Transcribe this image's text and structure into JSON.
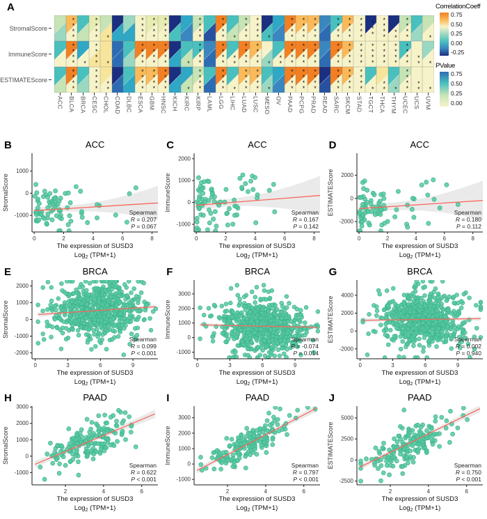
{
  "chart_data": {
    "heatmap": {
      "type": "heatmap",
      "letter": "A",
      "note": "Each cell: upper-left triangle = correlation coefficient, lower-right triangle = P value, asterisks = significance",
      "rows": [
        "StromalScore",
        "ImmuneScore",
        "ESTIMATEScore"
      ],
      "columns": [
        "ACC",
        "BLCA",
        "BRCA",
        "CESC",
        "CHOL",
        "COAD",
        "DLBC",
        "ESCA",
        "GBM",
        "HNSC",
        "KICH",
        "KIRC",
        "KIRP",
        "LAML",
        "LGG",
        "LIHC",
        "LUAD",
        "LUSC",
        "MESO",
        "OV",
        "PAAD",
        "PCPG",
        "PRAD",
        "READ",
        "SARC",
        "SKCM",
        "STAD",
        "TGCT",
        "THCA",
        "THYM",
        "UCEC",
        "UCS",
        "UVM"
      ],
      "palette": {
        "o": "#F28023",
        "lo": "#FBBA5A",
        "ly": "#F7E59C",
        "y": "#F7F3C9",
        "yg": "#E7ECB2",
        "g": "#C6E4B5",
        "pt": "#9BD8C2",
        "t": "#49C0BE",
        "tb": "#2FA8C6",
        "sb": "#3A87C0",
        "b": "#2D6CB2",
        "nb": "#27519F",
        "dn": "#1B2F80"
      },
      "cells": [
        [
          [
            "g",
            "pt",
            0
          ],
          [
            "lo",
            "y",
            4
          ],
          [
            "t",
            "g",
            0
          ],
          [
            "yg",
            "y",
            4
          ],
          [
            "g",
            "ly",
            1
          ],
          [
            "dn",
            "tb",
            0
          ],
          [
            "pt",
            "tb",
            0
          ],
          [
            "y",
            "y",
            4
          ],
          [
            "yg",
            "y",
            4
          ],
          [
            "yg",
            "y",
            4
          ],
          [
            "dn",
            "t",
            0
          ],
          [
            "tb",
            "sb",
            0
          ],
          [
            "g",
            "y",
            4
          ],
          [
            "t",
            "nb",
            0
          ],
          [
            "o",
            "y",
            4
          ],
          [
            "t",
            "g",
            1
          ],
          [
            "g",
            "y",
            4
          ],
          [
            "y",
            "y",
            4
          ],
          [
            "dn",
            "t",
            1
          ],
          [
            "tb",
            "sb",
            0
          ],
          [
            "o",
            "y",
            4
          ],
          [
            "lo",
            "y",
            4
          ],
          [
            "lo",
            "y",
            4
          ],
          [
            "sb",
            "b",
            0
          ],
          [
            "t",
            "y",
            4
          ],
          [
            "lo",
            "y",
            4
          ],
          [
            "y",
            "y",
            4
          ],
          [
            "dn",
            "y",
            3
          ],
          [
            "y",
            "y",
            4
          ],
          [
            "dn",
            "y",
            2
          ],
          [
            "g",
            "y",
            4
          ],
          [
            "t",
            "pt",
            0
          ],
          [
            "g",
            "y",
            1
          ]
        ],
        [
          [
            "t",
            "y",
            0
          ],
          [
            "o",
            "y",
            4
          ],
          [
            "tb",
            "y",
            1
          ],
          [
            "y",
            "ly",
            4
          ],
          [
            "ly",
            "ly",
            1
          ],
          [
            "b",
            "b",
            0
          ],
          [
            "t",
            "pt",
            0
          ],
          [
            "o",
            "y",
            4
          ],
          [
            "o",
            "y",
            4
          ],
          [
            "o",
            "y",
            4
          ],
          [
            "dn",
            "tb",
            0
          ],
          [
            "t",
            "g",
            1
          ],
          [
            "t",
            "y",
            4
          ],
          [
            "sb",
            "b",
            0
          ],
          [
            "o",
            "y",
            4
          ],
          [
            "t",
            "y",
            2
          ],
          [
            "o",
            "y",
            4
          ],
          [
            "lo",
            "y",
            4
          ],
          [
            "y",
            "pt",
            1
          ],
          [
            "t",
            "y",
            2
          ],
          [
            "o",
            "y",
            4
          ],
          [
            "o",
            "y",
            4
          ],
          [
            "o",
            "y",
            4
          ],
          [
            "sb",
            "b",
            0
          ],
          [
            "o",
            "y",
            4
          ],
          [
            "lo",
            "y",
            4
          ],
          [
            "y",
            "y",
            4
          ],
          [
            "y",
            "y",
            4
          ],
          [
            "y",
            "y",
            4
          ],
          [
            "y",
            "y",
            4
          ],
          [
            "t",
            "y",
            4
          ],
          [
            "y",
            "y",
            2
          ],
          [
            "pt",
            "y",
            1
          ]
        ],
        [
          [
            "t",
            "g",
            0
          ],
          [
            "o",
            "y",
            4
          ],
          [
            "t",
            "pt",
            0
          ],
          [
            "y",
            "y",
            4
          ],
          [
            "ly",
            "y",
            2
          ],
          [
            "dn",
            "b",
            0
          ],
          [
            "t",
            "tb",
            0
          ],
          [
            "lo",
            "y",
            4
          ],
          [
            "lo",
            "y",
            4
          ],
          [
            "o",
            "y",
            4
          ],
          [
            "dn",
            "tb",
            0
          ],
          [
            "tb",
            "g",
            1
          ],
          [
            "g",
            "y",
            4
          ],
          [
            "t",
            "b",
            0
          ],
          [
            "o",
            "y",
            4
          ],
          [
            "t",
            "y",
            1
          ],
          [
            "lo",
            "y",
            4
          ],
          [
            "lo",
            "y",
            4
          ],
          [
            "t",
            "pt",
            1
          ],
          [
            "tb",
            "sb",
            0
          ],
          [
            "o",
            "y",
            4
          ],
          [
            "o",
            "y",
            4
          ],
          [
            "o",
            "y",
            4
          ],
          [
            "dn",
            "nb",
            0
          ],
          [
            "o",
            "y",
            4
          ],
          [
            "lo",
            "y",
            4
          ],
          [
            "y",
            "y",
            4
          ],
          [
            "t",
            "y",
            1
          ],
          [
            "ly",
            "y",
            2
          ],
          [
            "t",
            "pt",
            1
          ],
          [
            "g",
            "y",
            4
          ],
          [
            "y",
            "y",
            2
          ],
          [
            "y",
            "y",
            1
          ]
        ]
      ],
      "legend_correlation": {
        "title": "CorrelationCoeff",
        "ticks": [
          "0.75",
          "0.50",
          "0.25",
          "0.00",
          "-0.25"
        ],
        "gradient": [
          "#F28023",
          "#FBBA5A",
          "#F7F3C9",
          "#9BD8C2",
          "#49C0BE",
          "#3A87C0",
          "#1B2F80"
        ]
      },
      "legend_pvalue": {
        "title": "PValue",
        "ticks": [
          "0.75",
          "0.50",
          "0.25",
          "0.00"
        ],
        "gradient": [
          "#2D6CB2",
          "#49C0BE",
          "#C6E4B5",
          "#F7F3C9"
        ]
      }
    },
    "scatter_common": {
      "xlabel_line1": "The expression of SUSD3",
      "xlabel_line2_prefix": "Log",
      "xlabel_subscript": "2",
      "xlabel_line2_suffix": " (TPM+1)",
      "spearman_label": "Spearman",
      "point_color": "#55C8A0",
      "point_stroke": "#3EB28C",
      "line_color": "#F8685C",
      "band_color": "#D9D9D9"
    },
    "scatter_panels": [
      {
        "letter": "B",
        "title": "ACC",
        "ylabel": "StromalScore",
        "r": "R = 0.207",
        "p": "P = 0.067",
        "xticks": [
          0,
          2,
          4,
          6,
          8
        ],
        "yticks": [
          -1000,
          0,
          1000
        ],
        "xlim": [
          -0.15,
          8.4
        ],
        "ylim": [
          -1750,
          1800
        ],
        "n": 79,
        "seed": 11,
        "xdist": {
          "type": "exp",
          "mean": 1.7,
          "min": 0.05,
          "max": 8.2
        },
        "line": {
          "x1": 0,
          "y1": -790,
          "x2": 8.4,
          "y2": -440
        },
        "sd": 530,
        "band": {
          "h0": 130,
          "c": 8,
          "xm": 1.7
        },
        "pt_r": 3.1
      },
      {
        "letter": "C",
        "title": "ACC",
        "ylabel": "ImmuneScore",
        "r": "R = 0.167",
        "p": "P = 0.142",
        "xticks": [
          0,
          2,
          4,
          6,
          8
        ],
        "yticks": [
          -1000,
          0,
          1000,
          2000
        ],
        "xlim": [
          -0.15,
          8.4
        ],
        "ylim": [
          -1350,
          2250
        ],
        "n": 79,
        "seed": 23,
        "xdist": {
          "type": "exp",
          "mean": 1.7,
          "min": 0.05,
          "max": 8.2
        },
        "line": {
          "x1": 0,
          "y1": -130,
          "x2": 8.4,
          "y2": 320
        },
        "sd": 720,
        "band": {
          "h0": 170,
          "c": 7,
          "xm": 1.7
        },
        "pt_r": 3.1
      },
      {
        "letter": "D",
        "title": "ACC",
        "ylabel": "ESTIMATEScore",
        "r": "R = 0.180",
        "p": "P = 0.112",
        "xticks": [
          0,
          2,
          4,
          6,
          8
        ],
        "yticks": [
          -2000,
          0,
          2000
        ],
        "xlim": [
          -0.15,
          8.7
        ],
        "ylim": [
          -2900,
          3900
        ],
        "n": 79,
        "seed": 35,
        "xdist": {
          "type": "exp",
          "mean": 1.75,
          "min": 0.05,
          "max": 8.0
        },
        "line": {
          "x1": 0,
          "y1": -880,
          "x2": 8.7,
          "y2": -180
        },
        "sd": 1250,
        "band": {
          "h0": 320,
          "c": 7,
          "xm": 1.7
        },
        "pt_r": 3.1
      },
      {
        "letter": "E",
        "title": "BRCA",
        "ylabel": "StromalScore",
        "r": "R = 0.099",
        "p": "P < 0.001",
        "xticks": [
          0,
          3,
          6,
          9
        ],
        "yticks": [
          -2000,
          -1000,
          0,
          1000,
          2000
        ],
        "xlim": [
          -0.3,
          11.3
        ],
        "ylim": [
          -2350,
          2350
        ],
        "n": 640,
        "seed": 47,
        "xdist": {
          "type": "norm",
          "mean": 5.9,
          "sd": 2.1,
          "min": 0.25,
          "max": 11.1
        },
        "line": {
          "x1": 0.25,
          "y1": 290,
          "x2": 11.1,
          "y2": 760
        },
        "sd": 880,
        "band": {
          "h0": 80,
          "c": 3,
          "xm": 5.9
        },
        "pt_r": 2.9
      },
      {
        "letter": "F",
        "title": "BRCA",
        "ylabel": "ImmuneScore",
        "r": "R = -0.074",
        "p": "P = 0.014",
        "xticks": [
          0,
          3,
          6,
          9
        ],
        "yticks": [
          -1000,
          0,
          1000,
          2000,
          3000
        ],
        "xlim": [
          -0.3,
          11.3
        ],
        "ylim": [
          -1450,
          3950
        ],
        "n": 640,
        "seed": 59,
        "xdist": {
          "type": "norm",
          "mean": 5.9,
          "sd": 2.1,
          "min": 0.25,
          "max": 11.1
        },
        "line": {
          "x1": 0.25,
          "y1": 880,
          "x2": 11.1,
          "y2": 700
        },
        "sd": 950,
        "band": {
          "h0": 85,
          "c": 3,
          "xm": 5.9
        },
        "pt_r": 2.9
      },
      {
        "letter": "G",
        "title": "BRCA",
        "ylabel": "ESTIMATEScore",
        "r": "R = 0.002",
        "p": "P = 0.940",
        "xticks": [
          0,
          3,
          6,
          9
        ],
        "yticks": [
          -2000,
          0,
          2000,
          4000
        ],
        "xlim": [
          -0.3,
          11.3
        ],
        "ylim": [
          -3100,
          5700
        ],
        "n": 640,
        "seed": 71,
        "xdist": {
          "type": "norm",
          "mean": 5.9,
          "sd": 2.1,
          "min": 0.25,
          "max": 11.1
        },
        "line": {
          "x1": 0.25,
          "y1": 1200,
          "x2": 11.1,
          "y2": 1390
        },
        "sd": 1600,
        "band": {
          "h0": 150,
          "c": 3,
          "xm": 5.9
        },
        "pt_r": 2.9
      },
      {
        "letter": "H",
        "title": "PAAD",
        "ylabel": "StromalScore",
        "r": "R = 0.622",
        "p": "P < 0.001",
        "xticks": [
          2,
          4,
          6
        ],
        "yticks": [
          -1000,
          0,
          1000,
          2000,
          3000
        ],
        "xlim": [
          0.25,
          6.85
        ],
        "ylim": [
          -1750,
          3050
        ],
        "n": 172,
        "seed": 83,
        "xdist": {
          "type": "norm",
          "mean": 3.1,
          "sd": 1.15,
          "min": 0.45,
          "max": 6.6
        },
        "line": {
          "x1": 0.4,
          "y1": -500,
          "x2": 6.7,
          "y2": 2580
        },
        "sd": 620,
        "band": {
          "h0": 140,
          "c": 3,
          "xm": 3.2
        },
        "pt_r": 3.0
      },
      {
        "letter": "I",
        "title": "PAAD",
        "ylabel": "ImmuneScore",
        "r": "R = 0.797",
        "p": "P < 0.001",
        "xticks": [
          2,
          4,
          6
        ],
        "yticks": [
          -1000,
          0,
          1000,
          2000,
          3000
        ],
        "xlim": [
          0.25,
          6.85
        ],
        "ylim": [
          -1350,
          3750
        ],
        "n": 172,
        "seed": 95,
        "xdist": {
          "type": "norm",
          "mean": 3.1,
          "sd": 1.15,
          "min": 0.45,
          "max": 6.6
        },
        "line": {
          "x1": 0.4,
          "y1": -420,
          "x2": 6.7,
          "y2": 3640
        },
        "sd": 520,
        "band": {
          "h0": 130,
          "c": 3,
          "xm": 3.2
        },
        "pt_r": 3.0
      },
      {
        "letter": "J",
        "title": "PAAD",
        "ylabel": "ESTIMATEScore",
        "r": "R = 0.750",
        "p": "P < 0.001",
        "xticks": [
          2,
          4,
          6
        ],
        "yticks": [
          -2500,
          0,
          2500,
          5000
        ],
        "xlim": [
          0.25,
          6.85
        ],
        "ylim": [
          -2950,
          6400
        ],
        "n": 172,
        "seed": 107,
        "xdist": {
          "type": "norm",
          "mean": 3.1,
          "sd": 1.15,
          "min": 0.45,
          "max": 6.6
        },
        "line": {
          "x1": 0.4,
          "y1": -850,
          "x2": 6.7,
          "y2": 6100
        },
        "sd": 1150,
        "band": {
          "h0": 240,
          "c": 3,
          "xm": 3.2
        },
        "pt_r": 3.0
      }
    ]
  }
}
